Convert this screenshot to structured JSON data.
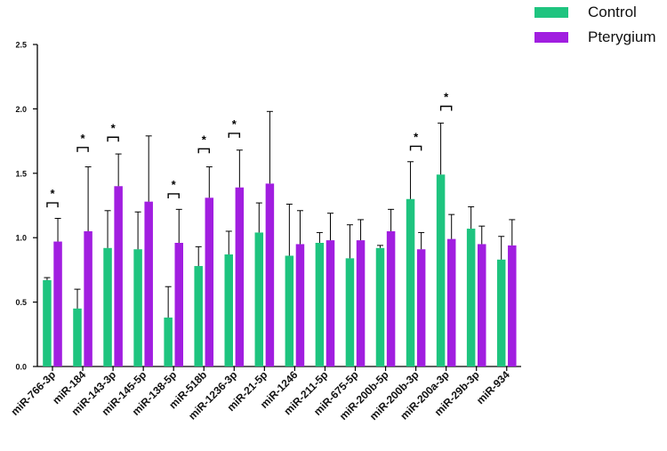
{
  "chart_data": {
    "type": "bar",
    "title": "",
    "xlabel": "",
    "ylabel": "",
    "ylim": [
      0,
      2.5
    ],
    "yticks": [
      0.0,
      0.5,
      1.0,
      1.5,
      2.0,
      2.5
    ],
    "ytick_labels": [
      "0.0",
      "0.5",
      "1.0",
      "1.5",
      "2.0",
      "2.5"
    ],
    "categories": [
      "miR-766-3p",
      "miR-184",
      "miR-143-3p",
      "miR-145-5p",
      "miR-138-5p",
      "miR-518b",
      "miR-1236-3p",
      "miR-21-5p",
      "miR-1246",
      "miR-211-5p",
      "miR-675-5p",
      "miR-200b-5p",
      "miR-200b-3p",
      "miR-200a-3p",
      "miR-29b-3p",
      "miR-934"
    ],
    "series": [
      {
        "name": "Control",
        "color": "#1ec47f",
        "values": [
          0.67,
          0.45,
          0.92,
          0.91,
          0.38,
          0.78,
          0.87,
          1.04,
          0.86,
          0.96,
          0.84,
          0.92,
          1.3,
          1.49,
          1.07,
          0.83
        ],
        "errors": [
          0.02,
          0.15,
          0.29,
          0.29,
          0.24,
          0.15,
          0.18,
          0.23,
          0.4,
          0.08,
          0.26,
          0.02,
          0.29,
          0.4,
          0.17,
          0.18
        ]
      },
      {
        "name": "Pterygium",
        "color": "#a11ee0",
        "values": [
          0.97,
          1.05,
          1.4,
          1.28,
          0.96,
          1.31,
          1.39,
          1.42,
          0.95,
          0.98,
          0.98,
          1.05,
          0.91,
          0.99,
          0.95,
          0.94
        ],
        "errors": [
          0.18,
          0.5,
          0.25,
          0.51,
          0.26,
          0.24,
          0.29,
          0.56,
          0.26,
          0.21,
          0.16,
          0.17,
          0.13,
          0.19,
          0.14,
          0.2
        ]
      }
    ],
    "significance": [
      {
        "category_index": 0,
        "label": "*",
        "y": 1.27
      },
      {
        "category_index": 1,
        "label": "*",
        "y": 1.7
      },
      {
        "category_index": 2,
        "label": "*",
        "y": 1.78
      },
      {
        "category_index": 4,
        "label": "*",
        "y": 1.34
      },
      {
        "category_index": 5,
        "label": "*",
        "y": 1.69
      },
      {
        "category_index": 6,
        "label": "*",
        "y": 1.81
      },
      {
        "category_index": 12,
        "label": "*",
        "y": 1.71
      },
      {
        "category_index": 13,
        "label": "*",
        "y": 2.02
      }
    ],
    "legend": {
      "position": "top-right",
      "items": [
        "Control",
        "Pterygium"
      ]
    }
  }
}
